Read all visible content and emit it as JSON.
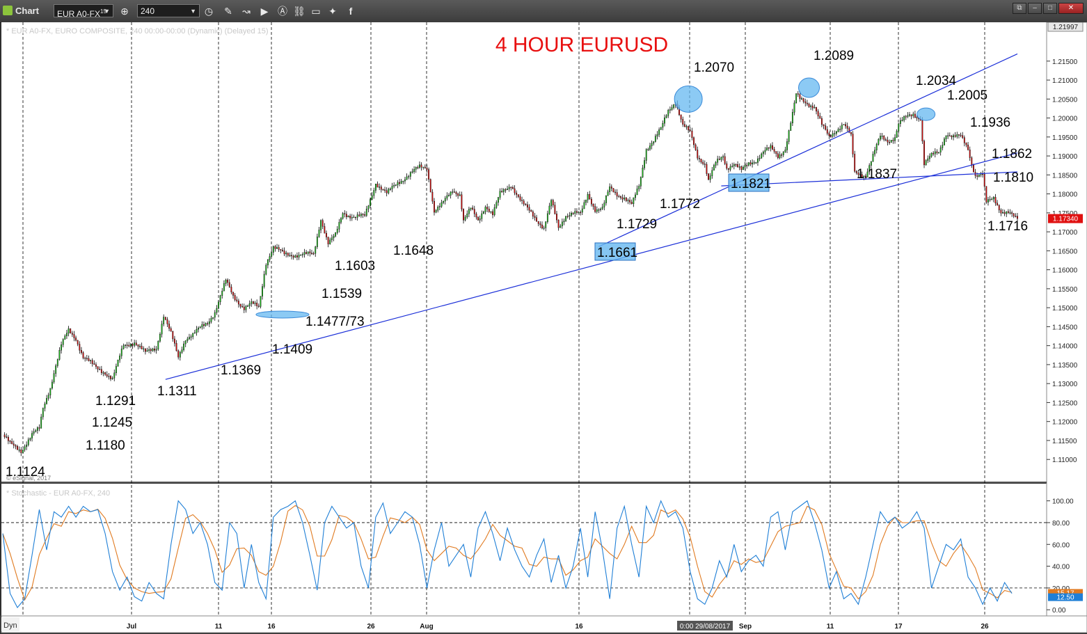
{
  "toolbar": {
    "title": "Chart",
    "symbol": "EUR A0-FX",
    "symbol_superscript": "15",
    "interval": "240",
    "icons": [
      "target-icon",
      "clock-icon",
      "pencil-icon",
      "line-chart-icon",
      "play-icon",
      "alert-icon",
      "link-icon",
      "chat-icon",
      "twitter-icon",
      "facebook-icon"
    ],
    "window_buttons": [
      "restore-icon",
      "minimize-icon",
      "maximize-icon",
      "close-icon"
    ]
  },
  "price_pane": {
    "header": "* EUR A0-FX, EURO COMPOSITE, 240  00:00-00:00 (Dynamic) (Delayed 15)",
    "copyright": "© eSignal, 2017",
    "title": "4 HOUR EURUSD",
    "current_price": "1.17340",
    "top_price": "1.21997"
  },
  "stoch_pane": {
    "header": "* Stochastic - EUR A0-FX, 240",
    "current_value_a": "15.17",
    "current_value_b": "12.50"
  },
  "time_axis": {
    "corner": "Dyn",
    "labels": [
      "Jul",
      "11",
      "16",
      "26",
      "Aug",
      "16",
      "Sep",
      "11",
      "17",
      "26"
    ],
    "cursor_readout": "0:00 29/08/2017"
  },
  "colors": {
    "up_candle": "#20c020",
    "down_candle": "#e01010",
    "trendline": "#1a2ed8",
    "title": "#e81010",
    "highlight": "#66b8f0",
    "stoch_k": "#1f7fd6",
    "stoch_d": "#e07a20",
    "price_marker": "#e01010"
  },
  "chart_data": [
    {
      "type": "candlestick",
      "title": "4 HOUR EURUSD",
      "xlabel": "",
      "ylabel": "",
      "ylim": [
        1.106,
        1.2212
      ],
      "y_ticks": [
        "1.21500",
        "1.21000",
        "1.20500",
        "1.20000",
        "1.19500",
        "1.19000",
        "1.18500",
        "1.18000",
        "1.17500",
        "1.17000",
        "1.16500",
        "1.16000",
        "1.15500",
        "1.15000",
        "1.14500",
        "1.14000",
        "1.13500",
        "1.13000",
        "1.12500",
        "1.12000",
        "1.11500",
        "1.11000"
      ],
      "x_tick_labels": [
        "Jul",
        "11",
        "16",
        "26",
        "Aug",
        "16",
        "Sep",
        "11",
        "17",
        "26"
      ],
      "close_path": [
        [
          0,
          1.1165
        ],
        [
          4,
          1.114
        ],
        [
          10,
          1.1124
        ],
        [
          16,
          1.1165
        ],
        [
          20,
          1.118
        ],
        [
          22,
          1.1235
        ],
        [
          26,
          1.1291
        ],
        [
          28,
          1.133
        ],
        [
          32,
          1.14
        ],
        [
          36,
          1.144
        ],
        [
          40,
          1.142
        ],
        [
          44,
          1.137
        ],
        [
          50,
          1.1345
        ],
        [
          56,
          1.133
        ],
        [
          60,
          1.1311
        ],
        [
          66,
          1.14
        ],
        [
          72,
          1.141
        ],
        [
          78,
          1.138
        ],
        [
          84,
          1.1395
        ],
        [
          88,
          1.148
        ],
        [
          92,
          1.143
        ],
        [
          96,
          1.1369
        ],
        [
          100,
          1.142
        ],
        [
          104,
          1.143
        ],
        [
          108,
          1.1445
        ],
        [
          112,
          1.146
        ],
        [
          116,
          1.149
        ],
        [
          122,
          1.157
        ],
        [
          126,
          1.153
        ],
        [
          132,
          1.15
        ],
        [
          136,
          1.151
        ],
        [
          140,
          1.15
        ],
        [
          144,
          1.162
        ],
        [
          148,
          1.166
        ],
        [
          154,
          1.164
        ],
        [
          160,
          1.164
        ],
        [
          166,
          1.164
        ],
        [
          170,
          1.164
        ],
        [
          174,
          1.1735
        ],
        [
          178,
          1.167
        ],
        [
          182,
          1.169
        ],
        [
          186,
          1.175
        ],
        [
          192,
          1.174
        ],
        [
          198,
          1.174
        ],
        [
          204,
          1.183
        ],
        [
          210,
          1.18
        ],
        [
          216,
          1.183
        ],
        [
          222,
          1.185
        ],
        [
          228,
          1.187
        ],
        [
          232,
          1.187
        ],
        [
          236,
          1.1755
        ],
        [
          240,
          1.177
        ],
        [
          246,
          1.181
        ],
        [
          250,
          1.18
        ],
        [
          252,
          1.173
        ],
        [
          256,
          1.176
        ],
        [
          260,
          1.173
        ],
        [
          264,
          1.177
        ],
        [
          268,
          1.1745
        ],
        [
          272,
          1.18
        ],
        [
          278,
          1.1825
        ],
        [
          284,
          1.1775
        ],
        [
          290,
          1.1745
        ],
        [
          296,
          1.171
        ],
        [
          300,
          1.178
        ],
        [
          304,
          1.171
        ],
        [
          308,
          1.1745
        ],
        [
          312,
          1.175
        ],
        [
          316,
          1.1745
        ],
        [
          320,
          1.18
        ],
        [
          324,
          1.176
        ],
        [
          328,
          1.176
        ],
        [
          332,
          1.1815
        ],
        [
          336,
          1.18
        ],
        [
          340,
          1.179
        ],
        [
          344,
          1.177
        ],
        [
          348,
          1.182
        ],
        [
          352,
          1.192
        ],
        [
          356,
          1.194
        ],
        [
          360,
          1.197
        ],
        [
          364,
          1.202
        ],
        [
          368,
          1.2045
        ],
        [
          372,
          1.198
        ],
        [
          376,
          1.196
        ],
        [
          380,
          1.19
        ],
        [
          384,
          1.188
        ],
        [
          386,
          1.1835
        ],
        [
          390,
          1.188
        ],
        [
          394,
          1.19
        ],
        [
          396,
          1.187
        ],
        [
          400,
          1.188
        ],
        [
          404,
          1.186
        ],
        [
          408,
          1.188
        ],
        [
          412,
          1.189
        ],
        [
          416,
          1.191
        ],
        [
          420,
          1.192
        ],
        [
          424,
          1.19
        ],
        [
          428,
          1.192
        ],
        [
          432,
          1.201
        ],
        [
          434,
          1.206
        ],
        [
          436,
          1.205
        ],
        [
          440,
          1.204
        ],
        [
          444,
          1.203
        ],
        [
          448,
          1.198
        ],
        [
          452,
          1.195
        ],
        [
          456,
          1.197
        ],
        [
          460,
          1.1985
        ],
        [
          464,
          1.195
        ],
        [
          466,
          1.1855
        ],
        [
          472,
          1.185
        ],
        [
          476,
          1.19
        ],
        [
          480,
          1.195
        ],
        [
          484,
          1.194
        ],
        [
          488,
          1.195
        ],
        [
          490,
          1.1985
        ],
        [
          494,
          1.2
        ],
        [
          498,
          1.201
        ],
        [
          502,
          1.2
        ],
        [
          504,
          1.188
        ],
        [
          508,
          1.19
        ],
        [
          512,
          1.191
        ],
        [
          516,
          1.196
        ],
        [
          520,
          1.195
        ],
        [
          524,
          1.195
        ],
        [
          528,
          1.192
        ],
        [
          530,
          1.188
        ],
        [
          532,
          1.185
        ],
        [
          536,
          1.185
        ],
        [
          538,
          1.1775
        ],
        [
          542,
          1.179
        ],
        [
          546,
          1.1755
        ],
        [
          550,
          1.175
        ],
        [
          554,
          1.1734
        ]
      ],
      "bar_index_range": [
        0,
        555
      ],
      "annotations": [
        "1.1124",
        "1.1180",
        "1.1245",
        "1.1291",
        "1.1311",
        "1.1369",
        "1.1409",
        "1.1477/73",
        "1.1539",
        "1.1603",
        "1.1648",
        "1.1661",
        "1.1729",
        "1.1772",
        "1.1821",
        "1.2070",
        "1.2089",
        "1.1837",
        "1.2034",
        "1.2005",
        "1.1936",
        "1.1862",
        "1.1810",
        "1.1716"
      ],
      "highlight_boxes": [
        "1.1661",
        "1.1821"
      ],
      "ellipses": [
        {
          "i": 375,
          "price": 1.205
        },
        {
          "i": 441,
          "price": 1.208
        },
        {
          "i": 505,
          "price": 1.201
        },
        {
          "i": 153,
          "price": 1.1482
        }
      ],
      "trendlines": [
        {
          "from": [
            89,
            1.1311
          ],
          "to": [
            555,
            1.1908
          ]
        },
        {
          "from": [
            326,
            1.1661
          ],
          "to": [
            555,
            1.2169
          ]
        },
        {
          "from": [
            393,
            1.1821
          ],
          "to": [
            555,
            1.1858
          ]
        }
      ],
      "grid": "vertical dashed"
    },
    {
      "type": "line",
      "title": "",
      "xlabel": "",
      "ylabel": "",
      "ylim": [
        -5,
        110
      ],
      "y_ticks": [
        "100.00",
        "80.00",
        "60.00",
        "40.00",
        "20.00",
        "0.00"
      ],
      "reference_lines": [
        80,
        20
      ],
      "series": [
        {
          "values": [
            [
              0,
              70
            ],
            [
              4,
              15
            ],
            [
              8,
              2
            ],
            [
              12,
              10
            ],
            [
              16,
              50
            ],
            [
              20,
              92
            ],
            [
              24,
              55
            ],
            [
              28,
              90
            ],
            [
              32,
              85
            ],
            [
              36,
              95
            ],
            [
              40,
              85
            ],
            [
              44,
              95
            ],
            [
              48,
              90
            ],
            [
              52,
              92
            ],
            [
              56,
              70
            ],
            [
              60,
              35
            ],
            [
              64,
              18
            ],
            [
              68,
              30
            ],
            [
              72,
              12
            ],
            [
              76,
              8
            ],
            [
              80,
              25
            ],
            [
              84,
              15
            ],
            [
              88,
              10
            ],
            [
              92,
              60
            ],
            [
              96,
              100
            ],
            [
              100,
              92
            ],
            [
              104,
              70
            ],
            [
              108,
              80
            ],
            [
              112,
              60
            ],
            [
              116,
              25
            ],
            [
              120,
              18
            ],
            [
              124,
              80
            ],
            [
              128,
              70
            ],
            [
              132,
              20
            ],
            [
              136,
              60
            ],
            [
              140,
              25
            ],
            [
              144,
              10
            ],
            [
              148,
              85
            ],
            [
              152,
              92
            ],
            [
              156,
              95
            ],
            [
              160,
              100
            ],
            [
              164,
              80
            ],
            [
              168,
              50
            ],
            [
              172,
              18
            ],
            [
              176,
              80
            ],
            [
              180,
              95
            ],
            [
              184,
              85
            ],
            [
              188,
              75
            ],
            [
              192,
              80
            ],
            [
              196,
              40
            ],
            [
              200,
              20
            ],
            [
              204,
              85
            ],
            [
              208,
              98
            ],
            [
              212,
              70
            ],
            [
              216,
              80
            ],
            [
              220,
              90
            ],
            [
              224,
              85
            ],
            [
              228,
              60
            ],
            [
              232,
              20
            ],
            [
              236,
              55
            ],
            [
              240,
              80
            ],
            [
              244,
              40
            ],
            [
              248,
              50
            ],
            [
              252,
              60
            ],
            [
              256,
              30
            ],
            [
              260,
              75
            ],
            [
              264,
              90
            ],
            [
              268,
              70
            ],
            [
              272,
              45
            ],
            [
              276,
              75
            ],
            [
              280,
              55
            ],
            [
              284,
              40
            ],
            [
              288,
              30
            ],
            [
              292,
              50
            ],
            [
              296,
              65
            ],
            [
              300,
              25
            ],
            [
              304,
              50
            ],
            [
              308,
              20
            ],
            [
              312,
              40
            ],
            [
              316,
              75
            ],
            [
              320,
              30
            ],
            [
              324,
              90
            ],
            [
              328,
              55
            ],
            [
              332,
              10
            ],
            [
              336,
              75
            ],
            [
              340,
              95
            ],
            [
              344,
              60
            ],
            [
              348,
              30
            ],
            [
              352,
              95
            ],
            [
              356,
              80
            ],
            [
              360,
              100
            ],
            [
              364,
              85
            ],
            [
              368,
              90
            ],
            [
              372,
              75
            ],
            [
              376,
              35
            ],
            [
              380,
              10
            ],
            [
              384,
              5
            ],
            [
              388,
              20
            ],
            [
              392,
              45
            ],
            [
              396,
              30
            ],
            [
              400,
              60
            ],
            [
              404,
              35
            ],
            [
              408,
              45
            ],
            [
              412,
              50
            ],
            [
              416,
              40
            ],
            [
              420,
              85
            ],
            [
              424,
              90
            ],
            [
              428,
              55
            ],
            [
              432,
              90
            ],
            [
              436,
              95
            ],
            [
              440,
              100
            ],
            [
              444,
              80
            ],
            [
              448,
              55
            ],
            [
              452,
              20
            ],
            [
              456,
              35
            ],
            [
              460,
              10
            ],
            [
              464,
              15
            ],
            [
              468,
              5
            ],
            [
              472,
              30
            ],
            [
              476,
              60
            ],
            [
              480,
              90
            ],
            [
              484,
              80
            ],
            [
              488,
              85
            ],
            [
              492,
              75
            ],
            [
              496,
              80
            ],
            [
              500,
              90
            ],
            [
              504,
              75
            ],
            [
              508,
              20
            ],
            [
              512,
              40
            ],
            [
              516,
              60
            ],
            [
              520,
              55
            ],
            [
              524,
              65
            ],
            [
              528,
              30
            ],
            [
              532,
              20
            ],
            [
              536,
              5
            ],
            [
              540,
              20
            ],
            [
              544,
              8
            ],
            [
              548,
              25
            ],
            [
              552,
              15
            ]
          ]
        }
      ]
    }
  ]
}
